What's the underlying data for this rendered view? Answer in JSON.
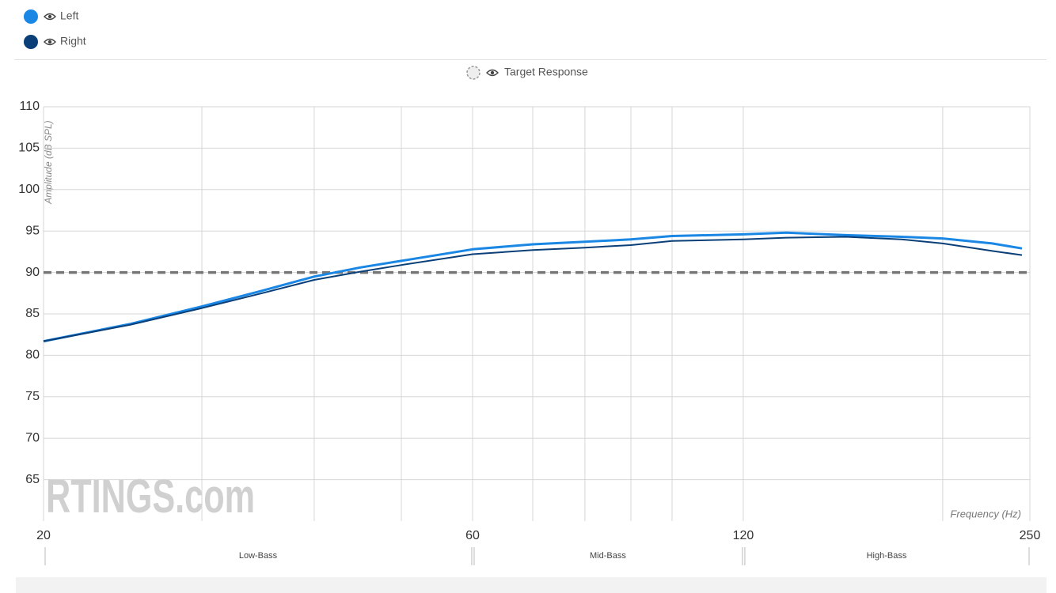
{
  "chart_data": {
    "type": "line",
    "y_label": "Amplitude (dB SPL)",
    "x_label": "Frequency (Hz)",
    "watermark": "RTINGS.com",
    "x": [
      20,
      25,
      30,
      35,
      40,
      45,
      50,
      60,
      70,
      80,
      90,
      100,
      120,
      134,
      156,
      180,
      200,
      227,
      245
    ],
    "series": [
      {
        "name": "Left",
        "color": "#1b87e5",
        "values": [
          81.7,
          83.8,
          85.9,
          87.8,
          89.5,
          90.6,
          91.4,
          92.8,
          93.4,
          93.7,
          94.0,
          94.4,
          94.6,
          94.8,
          94.5,
          94.3,
          94.1,
          93.5,
          92.9
        ]
      },
      {
        "name": "Right",
        "color": "#0a3f78",
        "values": [
          81.7,
          83.7,
          85.7,
          87.5,
          89.1,
          90.1,
          90.9,
          92.2,
          92.7,
          93.0,
          93.3,
          93.8,
          94.0,
          94.2,
          94.3,
          94.0,
          93.5,
          92.6,
          92.1
        ]
      }
    ],
    "target": {
      "name": "Target Response",
      "value": 90,
      "color": "#777777"
    },
    "xlim": [
      20,
      250
    ],
    "xticks": [
      20,
      60,
      120,
      250
    ],
    "x_minor_ticks": [
      30,
      40,
      50,
      70,
      80,
      90,
      100,
      200
    ],
    "x_log": true,
    "ylim": [
      60,
      110
    ],
    "yticks": [
      65,
      70,
      75,
      80,
      85,
      90,
      95,
      100,
      105,
      110
    ],
    "grid": true,
    "bands": [
      {
        "name": "Low-Bass",
        "from": 20,
        "to": 60
      },
      {
        "name": "Mid-Bass",
        "from": 60,
        "to": 120
      },
      {
        "name": "High-Bass",
        "from": 120,
        "to": 250
      }
    ]
  }
}
